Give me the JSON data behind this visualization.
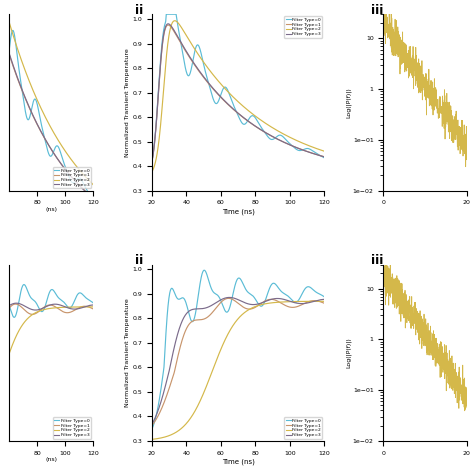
{
  "colors": {
    "type0": "#5bbcd6",
    "type1": "#c8956c",
    "type2": "#d4b84a",
    "type3": "#7b6b8b"
  },
  "legend_labels": [
    "Filter Type=0",
    "Filter Type=1",
    "Filter Type=2",
    "Filter Type=3"
  ],
  "xlabel_ii": "Time (ns)",
  "ylabel_ii": "Normalized Transient Temperature",
  "ylabel_iii": "Log(|P(f)|)"
}
